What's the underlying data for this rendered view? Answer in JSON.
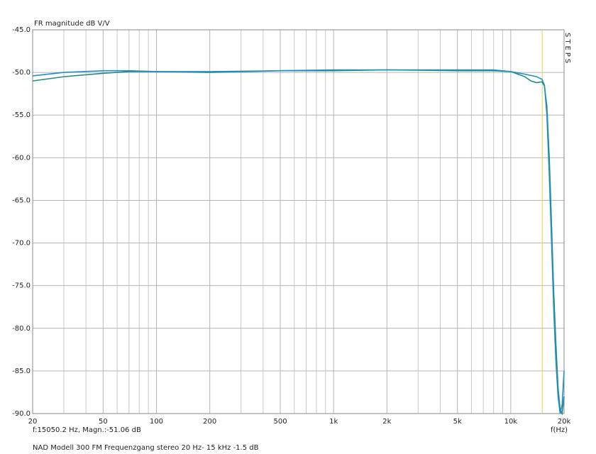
{
  "chart_data": {
    "type": "line",
    "title": "FR magnitude dB V/V",
    "side_label": "STEPS",
    "x_label": "f(Hz)",
    "cursor_readout": "f:15050.2 Hz, Magn.:-51.06 dB",
    "cursor_x": 15050.2,
    "cursor_color": "#d8d860",
    "footer": "NAD Modell 300 FM Frequenzgang stereo 20 Hz- 15 kHz -1.5 dB",
    "x_scale": "log",
    "xlim": [
      20,
      20000
    ],
    "ylim": [
      -90,
      -45
    ],
    "xticks": [
      20,
      50,
      100,
      200,
      500,
      {
        "value": 1000,
        "label": "1k"
      },
      {
        "value": 2000,
        "label": "2k"
      },
      {
        "value": 5000,
        "label": "5k"
      },
      {
        "value": 10000,
        "label": "10k"
      },
      {
        "value": 20000,
        "label": "20k"
      }
    ],
    "x_minor_grid": [
      30,
      40,
      60,
      70,
      80,
      90,
      300,
      400,
      600,
      700,
      800,
      900,
      3000,
      4000,
      6000,
      7000,
      8000,
      9000
    ],
    "yticks": [
      {
        "value": -45,
        "label": "-45.0"
      },
      {
        "value": -50,
        "label": "-50.0"
      },
      {
        "value": -55,
        "label": "-55.0"
      },
      {
        "value": -60,
        "label": "-60.0"
      },
      {
        "value": -65,
        "label": "-65.0"
      },
      {
        "value": -70,
        "label": "-70.0"
      },
      {
        "value": -75,
        "label": "-75.0"
      },
      {
        "value": -80,
        "label": "-80.0"
      },
      {
        "value": -85,
        "label": "-85.0"
      },
      {
        "value": -90,
        "label": "-90.0"
      }
    ],
    "grid": true,
    "series": [
      {
        "color": "#2a8a78",
        "x": [
          20,
          30,
          50,
          70,
          100,
          200,
          500,
          1000,
          2000,
          5000,
          8000,
          10000,
          12000,
          13000,
          14000,
          15000,
          15500,
          16000,
          16500,
          17000,
          17500,
          18000,
          18500,
          19000,
          19500,
          20000
        ],
        "values": [
          -51.0,
          -50.5,
          -50.1,
          -49.9,
          -49.9,
          -50.0,
          -49.8,
          -49.8,
          -49.7,
          -49.8,
          -49.8,
          -49.9,
          -50.5,
          -51.0,
          -51.2,
          -51.1,
          -51.6,
          -54,
          -60,
          -68,
          -76,
          -82,
          -87,
          -89.5,
          -90,
          -88
        ]
      },
      {
        "color": "#1e8fc8",
        "x": [
          20,
          30,
          50,
          70,
          100,
          200,
          500,
          1000,
          2000,
          5000,
          8000,
          10000,
          12000,
          14000,
          15000,
          15500,
          16000,
          16500,
          17000,
          17500,
          18000,
          18500,
          19000,
          19500,
          20000
        ],
        "values": [
          -50.4,
          -50.0,
          -49.8,
          -49.8,
          -49.9,
          -49.9,
          -49.8,
          -49.7,
          -49.7,
          -49.7,
          -49.7,
          -49.9,
          -50.2,
          -50.5,
          -50.8,
          -51.5,
          -55,
          -62,
          -70,
          -78,
          -84,
          -88,
          -90,
          -89,
          -85
        ]
      }
    ]
  }
}
